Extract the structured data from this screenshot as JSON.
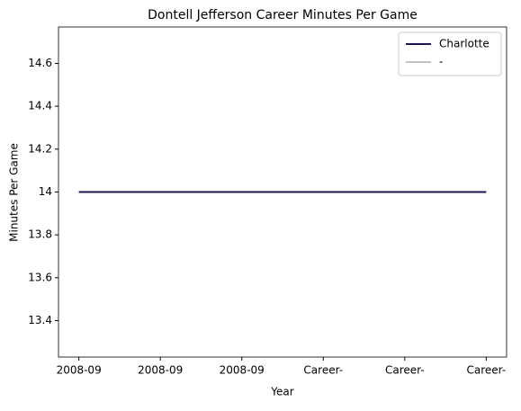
{
  "chart_data": {
    "type": "line",
    "title": "Dontell Jefferson Career Minutes Per Game",
    "x_label": "Year",
    "y_label": "Minutes Per Game",
    "categories": [
      "2008-09",
      "2008-09",
      "2008-09",
      "Career-",
      "Career-",
      "Career-"
    ],
    "series": [
      {
        "name": "Charlotte",
        "color": "#1f1452",
        "values": [
          14.0,
          14.0,
          14.0,
          14.0,
          14.0,
          14.0
        ]
      },
      {
        "name": "-",
        "color": "#c0c0c0",
        "values": [
          null,
          null,
          null,
          null,
          null,
          null
        ]
      }
    ],
    "ylim": [
      13.23,
      14.77
    ],
    "yticks": [
      13.4,
      13.6,
      13.8,
      14.0,
      14.2,
      14.4,
      14.6
    ],
    "legend": "upper right"
  }
}
